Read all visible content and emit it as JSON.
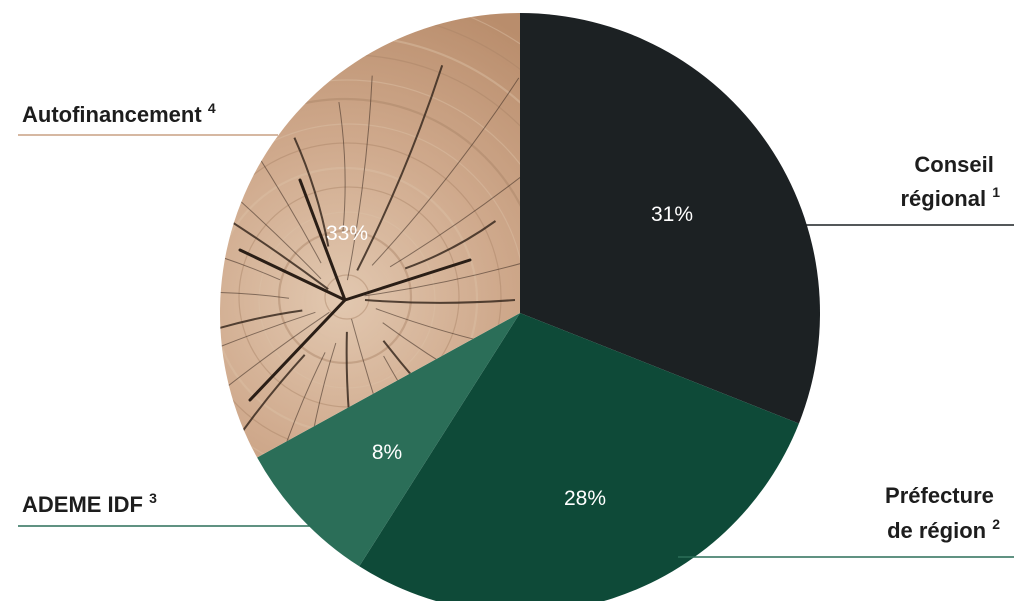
{
  "chart_data": {
    "type": "pie",
    "slices": [
      {
        "label": "Conseil régional",
        "note": "1",
        "value": 31,
        "value_label": "31%",
        "color": "#1c2123"
      },
      {
        "label": "Préfecture de région",
        "note": "2",
        "value": 28,
        "value_label": "28%",
        "color": "#0e4a38"
      },
      {
        "label": "ADEME IDF",
        "note": "3",
        "value": 8,
        "value_label": "8%",
        "color": "#2b6e58"
      },
      {
        "label": "Autofinancement",
        "note": "4",
        "value": 33,
        "value_label": "33%",
        "color": "#c9a184"
      }
    ],
    "leader_colors": {
      "dark": "#1c2123",
      "green": "#2b6e58",
      "wood": "#c9a184"
    }
  }
}
